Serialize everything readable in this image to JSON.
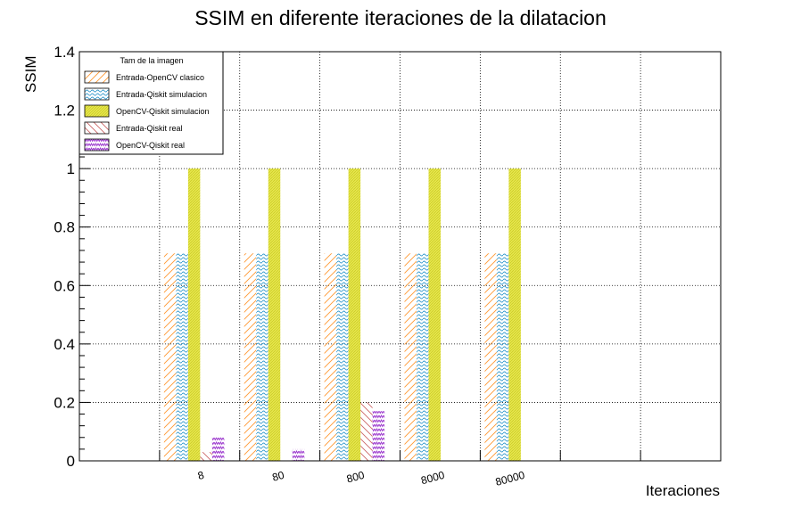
{
  "chart_data": {
    "type": "bar",
    "title": "SSIM en diferente iteraciones de la dilatacion",
    "xlabel": "Iteraciones",
    "ylabel": "SSIM",
    "ylim": [
      0,
      1.4
    ],
    "yticks": [
      "0",
      "0.2",
      "0.4",
      "0.6",
      "0.8",
      "1",
      "1.2",
      "1.4"
    ],
    "grid": true,
    "legend_title": "Tam de la imagen",
    "legend_position": "top-left",
    "categories": [
      "",
      "8",
      "80",
      "800",
      "8000",
      "80000",
      "",
      ""
    ],
    "series": [
      {
        "name": "Entrada-OpenCV clasico",
        "color": "#ff9933",
        "pattern": "diag-up",
        "values": [
          0,
          0.71,
          0.71,
          0.71,
          0.71,
          0.71,
          0,
          0
        ]
      },
      {
        "name": "Entrada-Qiskit simulacion",
        "color": "#3399cc",
        "pattern": "wave",
        "values": [
          0,
          0.71,
          0.71,
          0.71,
          0.71,
          0.71,
          0,
          0
        ]
      },
      {
        "name": "OpenCV-Qiskit simulacion",
        "color": "#dddd33",
        "pattern": "dense",
        "values": [
          0,
          1.0,
          1.0,
          1.0,
          1.0,
          1.0,
          0,
          0
        ]
      },
      {
        "name": "Entrada-Qiskit real",
        "color": "#cc6666",
        "pattern": "diag-down",
        "values": [
          0,
          0.03,
          0,
          0.2,
          0,
          0,
          0,
          0
        ]
      },
      {
        "name": "OpenCV-Qiskit real",
        "color": "#9933cc",
        "pattern": "zigzag",
        "values": [
          0,
          0.08,
          0.04,
          0.17,
          0,
          0,
          0,
          0
        ]
      }
    ]
  }
}
